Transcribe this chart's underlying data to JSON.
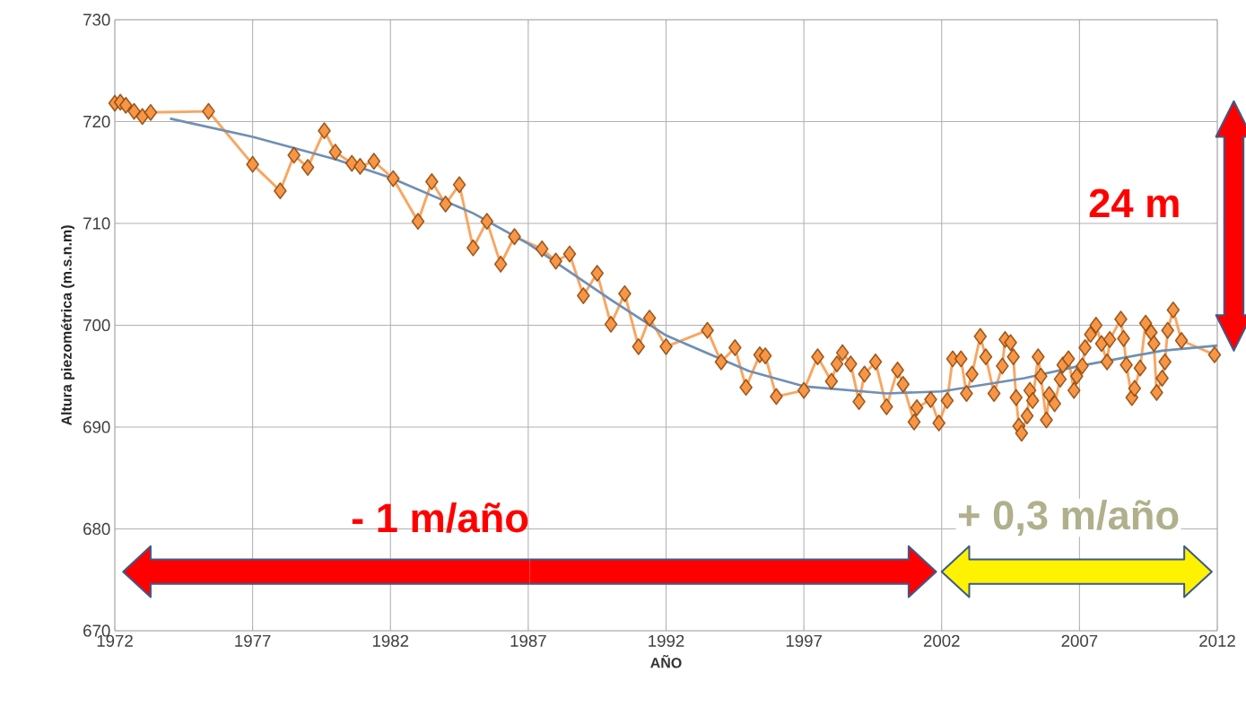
{
  "chart_data": {
    "type": "line",
    "xlabel": "AÑO",
    "ylabel": "Altura piezométrica (m.s.n.m)",
    "xlim": [
      1972,
      2012
    ],
    "ylim": [
      670,
      730
    ],
    "xticks": [
      1972,
      1977,
      1982,
      1987,
      1992,
      1997,
      2002,
      2007,
      2012
    ],
    "yticks": [
      670,
      680,
      690,
      700,
      710,
      720,
      730
    ],
    "grid": true,
    "series": [
      {
        "marker": "diamond",
        "color": "#f79646",
        "x": [
          1972.0,
          1972.2,
          1972.4,
          1972.7,
          1973.0,
          1973.3,
          1975.4,
          1977.0,
          1978.0,
          1978.5,
          1979.0,
          1979.6,
          1980.0,
          1980.6,
          1980.9,
          1981.4,
          1982.1,
          1983.0,
          1983.5,
          1984.0,
          1984.5,
          1985.0,
          1985.5,
          1986.0,
          1986.5,
          1987.5,
          1988.0,
          1988.5,
          1989.0,
          1989.5,
          1990.0,
          1990.5,
          1991.0,
          1991.4,
          1992.0,
          1993.5,
          1994.0,
          1994.5,
          1994.9,
          1995.4,
          1995.6,
          1996.0,
          1997.0,
          1997.5,
          1998.0,
          1998.2,
          1998.4,
          1998.7,
          1999.0,
          1999.2,
          1999.6,
          2000.0,
          2000.4,
          2000.6,
          2001.0,
          2001.1,
          2001.6,
          2001.9,
          2002.2,
          2002.4,
          2002.7,
          2002.9,
          2003.1,
          2003.4,
          2003.6,
          2003.9,
          2004.2,
          2004.3,
          2004.5,
          2004.6,
          2004.7,
          2004.8,
          2004.9,
          2005.1,
          2005.2,
          2005.3,
          2005.5,
          2005.6,
          2005.8,
          2005.9,
          2006.1,
          2006.3,
          2006.4,
          2006.6,
          2006.8,
          2006.9,
          2007.1,
          2007.2,
          2007.4,
          2007.6,
          2007.8,
          2008.0,
          2008.1,
          2008.5,
          2008.6,
          2008.7,
          2008.9,
          2009.0,
          2009.2,
          2009.4,
          2009.6,
          2009.7,
          2009.8,
          2010.0,
          2010.1,
          2010.2,
          2010.4,
          2010.7,
          2011.9
        ],
        "values": [
          721.8,
          721.9,
          721.6,
          721.0,
          720.5,
          720.9,
          721.0,
          715.8,
          713.2,
          716.7,
          715.5,
          719.1,
          717.0,
          715.9,
          715.6,
          716.1,
          714.4,
          710.2,
          714.1,
          711.9,
          713.8,
          707.6,
          710.2,
          706.0,
          708.7,
          707.5,
          706.3,
          707.0,
          702.9,
          705.1,
          700.1,
          703.1,
          697.9,
          700.7,
          697.9,
          699.5,
          696.4,
          697.8,
          693.9,
          697.1,
          697.0,
          693.0,
          693.6,
          696.9,
          694.5,
          696.2,
          697.3,
          696.2,
          692.5,
          695.2,
          696.4,
          692.0,
          695.6,
          694.2,
          690.5,
          691.9,
          692.7,
          690.4,
          692.6,
          696.7,
          696.7,
          693.3,
          695.2,
          698.9,
          696.9,
          693.3,
          696.0,
          698.6,
          698.3,
          696.9,
          692.9,
          690.1,
          689.4,
          691.1,
          693.6,
          692.6,
          696.9,
          695.0,
          690.7,
          693.2,
          692.3,
          694.7,
          696.1,
          696.7,
          693.6,
          695.0,
          696.0,
          697.8,
          699.1,
          700.0,
          698.2,
          696.4,
          698.6,
          700.6,
          698.7,
          696.1,
          692.9,
          693.8,
          695.8,
          700.2,
          699.3,
          698.2,
          693.4,
          694.8,
          696.4,
          699.5,
          701.5,
          698.5,
          697.1
        ]
      },
      {
        "marker": "none",
        "color": "#6f8fb5",
        "x": [
          1974,
          1977,
          1980,
          1982,
          1985,
          1987,
          1990,
          1992,
          1995,
          1997,
          2000,
          2002,
          2005,
          2007,
          2010,
          2012
        ],
        "values": [
          720.3,
          718.5,
          716.3,
          714.5,
          711.0,
          708.0,
          702.5,
          699.0,
          695.5,
          694.0,
          693.3,
          693.5,
          694.8,
          696.0,
          697.5,
          698.0
        ]
      }
    ],
    "annotations": [
      "- 1 m/año",
      "+ 0,3 m/año",
      "24 m"
    ]
  }
}
